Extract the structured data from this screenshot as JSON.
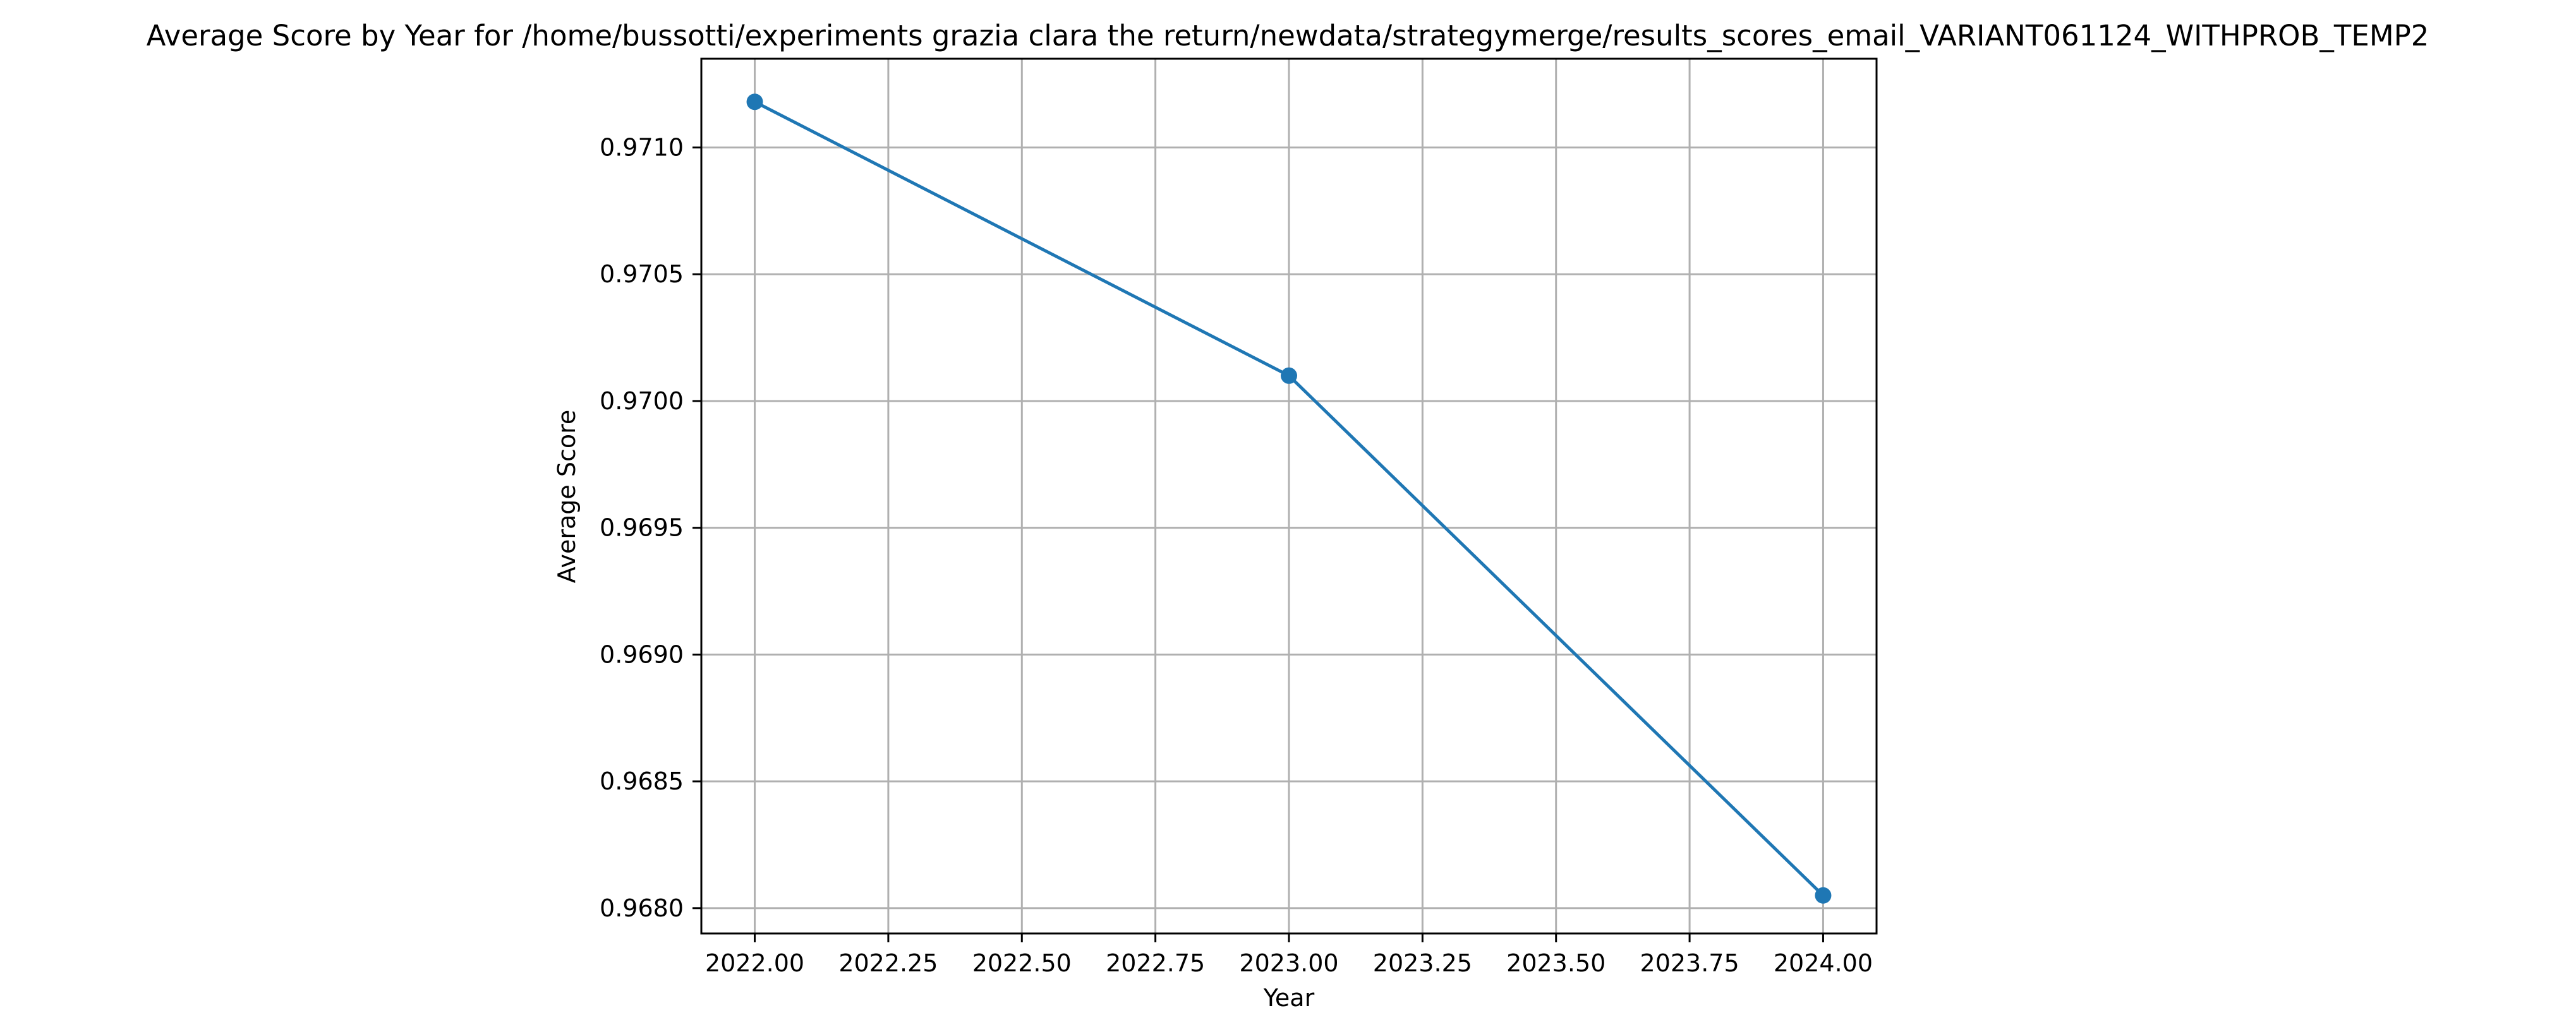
{
  "chart_data": {
    "type": "line",
    "title": "Average Score by Year for /home/bussotti/experiments grazia clara the return/newdata/strategymerge/results_scores_email_VARIANT061124_WITHPROB_TEMP2",
    "xlabel": "Year",
    "ylabel": "Average Score",
    "x": [
      2022,
      2023,
      2024
    ],
    "series": [
      {
        "values": [
          0.97118,
          0.9701,
          0.96805
        ]
      }
    ],
    "xlim": [
      2021.9,
      2024.1
    ],
    "ylim": [
      0.9679,
      0.97135
    ],
    "x_ticks": [
      2022.0,
      2022.25,
      2022.5,
      2022.75,
      2023.0,
      2023.25,
      2023.5,
      2023.75,
      2024.0
    ],
    "x_tick_labels": [
      "2022.00",
      "2022.25",
      "2022.50",
      "2022.75",
      "2023.00",
      "2023.25",
      "2023.50",
      "2023.75",
      "2024.00"
    ],
    "y_ticks": [
      0.968,
      0.9685,
      0.969,
      0.9695,
      0.97,
      0.9705,
      0.971
    ],
    "y_tick_labels": [
      "0.9680",
      "0.9685",
      "0.9690",
      "0.9695",
      "0.9700",
      "0.9705",
      "0.9710"
    ],
    "grid": true,
    "line_color": "#1f77b4",
    "grid_color": "#b0b0b0",
    "markers": true
  }
}
